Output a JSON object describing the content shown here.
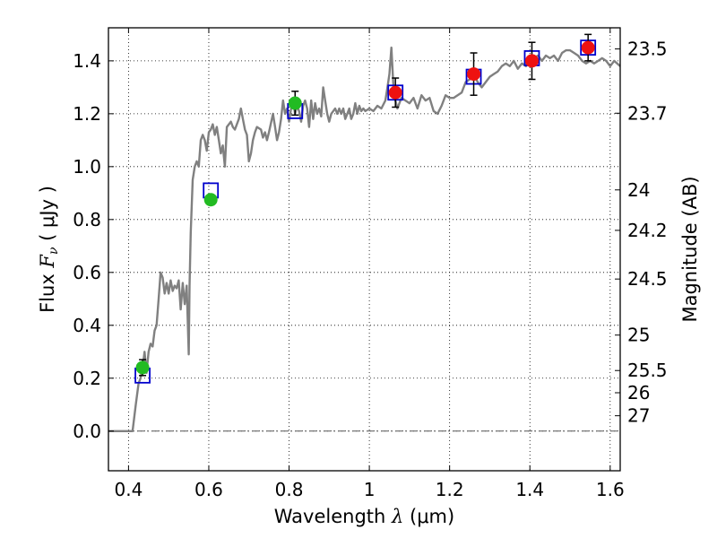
{
  "chart_data": {
    "type": "scatter",
    "title": "",
    "xlabel": "Wavelength λ (μm)",
    "xlabel_parts": {
      "prefix": "Wavelength  ",
      "var": "λ",
      "unit": " (μm)"
    },
    "ylabel": "Flux F_ν (μJy)",
    "ylabel_parts": {
      "prefix": "Flux  ",
      "var": "F",
      "sub": "ν",
      "unit": "  ( μJy )"
    },
    "y2label": "Magnitude (AB)",
    "xlim": [
      0.35,
      1.625
    ],
    "ylim": [
      -0.15,
      1.525
    ],
    "grid": true,
    "grid_style": "dotted",
    "x_ticks": [
      {
        "value": 0.4,
        "label": "0.4"
      },
      {
        "value": 0.6,
        "label": "0.6"
      },
      {
        "value": 0.8,
        "label": "0.8"
      },
      {
        "value": 1.0,
        "label": "1"
      },
      {
        "value": 1.2,
        "label": "1.2"
      },
      {
        "value": 1.4,
        "label": "1.4"
      },
      {
        "value": 1.6,
        "label": "1.6"
      }
    ],
    "y_ticks": [
      {
        "value": 0.0,
        "label": "0.0"
      },
      {
        "value": 0.2,
        "label": "0.2"
      },
      {
        "value": 0.4,
        "label": "0.4"
      },
      {
        "value": 0.6,
        "label": "0.6"
      },
      {
        "value": 0.8,
        "label": "0.8"
      },
      {
        "value": 1.0,
        "label": "1.0"
      },
      {
        "value": 1.2,
        "label": "1.2"
      },
      {
        "value": 1.4,
        "label": "1.4"
      }
    ],
    "magnitude_ticks": [
      {
        "label": "23.5",
        "flux": 1.445
      },
      {
        "label": "23.7",
        "flux": 1.202
      },
      {
        "label": "24",
        "flux": 0.912
      },
      {
        "label": "24.2",
        "flux": 0.759
      },
      {
        "label": "24.5",
        "flux": 0.575
      },
      {
        "label": "25",
        "flux": 0.363
      },
      {
        "label": "25.5",
        "flux": 0.229
      },
      {
        "label": "26",
        "flux": 0.145
      },
      {
        "label": "27",
        "flux": 0.058
      }
    ],
    "zero_line": {
      "y": 0.0,
      "style": "dash-dot",
      "color": "#555555"
    },
    "series": [
      {
        "kind": "model-spectrum",
        "color": "#808080",
        "points": [
          [
            0.35,
            0.0
          ],
          [
            0.41,
            0.0
          ],
          [
            0.418,
            0.1
          ],
          [
            0.425,
            0.18
          ],
          [
            0.43,
            0.2
          ],
          [
            0.435,
            0.24
          ],
          [
            0.44,
            0.3
          ],
          [
            0.445,
            0.22
          ],
          [
            0.45,
            0.3
          ],
          [
            0.455,
            0.33
          ],
          [
            0.46,
            0.32
          ],
          [
            0.465,
            0.38
          ],
          [
            0.47,
            0.4
          ],
          [
            0.475,
            0.5
          ],
          [
            0.48,
            0.6
          ],
          [
            0.485,
            0.58
          ],
          [
            0.49,
            0.52
          ],
          [
            0.495,
            0.56
          ],
          [
            0.5,
            0.52
          ],
          [
            0.505,
            0.57
          ],
          [
            0.51,
            0.53
          ],
          [
            0.515,
            0.55
          ],
          [
            0.52,
            0.54
          ],
          [
            0.525,
            0.57
          ],
          [
            0.53,
            0.46
          ],
          [
            0.535,
            0.56
          ],
          [
            0.54,
            0.48
          ],
          [
            0.545,
            0.55
          ],
          [
            0.55,
            0.29
          ],
          [
            0.552,
            0.55
          ],
          [
            0.555,
            0.75
          ],
          [
            0.56,
            0.95
          ],
          [
            0.565,
            1.0
          ],
          [
            0.57,
            1.02
          ],
          [
            0.575,
            1.0
          ],
          [
            0.58,
            1.1
          ],
          [
            0.585,
            1.12
          ],
          [
            0.59,
            1.1
          ],
          [
            0.595,
            1.06
          ],
          [
            0.6,
            1.13
          ],
          [
            0.605,
            1.14
          ],
          [
            0.61,
            1.16
          ],
          [
            0.615,
            1.12
          ],
          [
            0.62,
            1.15
          ],
          [
            0.625,
            1.1
          ],
          [
            0.63,
            1.05
          ],
          [
            0.635,
            1.08
          ],
          [
            0.64,
            1.0
          ],
          [
            0.645,
            1.15
          ],
          [
            0.65,
            1.16
          ],
          [
            0.655,
            1.17
          ],
          [
            0.66,
            1.15
          ],
          [
            0.665,
            1.14
          ],
          [
            0.67,
            1.16
          ],
          [
            0.675,
            1.18
          ],
          [
            0.68,
            1.22
          ],
          [
            0.685,
            1.18
          ],
          [
            0.69,
            1.14
          ],
          [
            0.695,
            1.12
          ],
          [
            0.7,
            1.02
          ],
          [
            0.705,
            1.05
          ],
          [
            0.71,
            1.1
          ],
          [
            0.715,
            1.13
          ],
          [
            0.72,
            1.15
          ],
          [
            0.73,
            1.14
          ],
          [
            0.735,
            1.11
          ],
          [
            0.74,
            1.13
          ],
          [
            0.745,
            1.1
          ],
          [
            0.75,
            1.13
          ],
          [
            0.76,
            1.2
          ],
          [
            0.765,
            1.15
          ],
          [
            0.77,
            1.1
          ],
          [
            0.775,
            1.13
          ],
          [
            0.78,
            1.18
          ],
          [
            0.785,
            1.25
          ],
          [
            0.79,
            1.2
          ],
          [
            0.795,
            1.22
          ],
          [
            0.8,
            1.17
          ],
          [
            0.805,
            1.22
          ],
          [
            0.81,
            1.25
          ],
          [
            0.815,
            1.2
          ],
          [
            0.82,
            1.23
          ],
          [
            0.825,
            1.21
          ],
          [
            0.83,
            1.17
          ],
          [
            0.835,
            1.23
          ],
          [
            0.84,
            1.25
          ],
          [
            0.845,
            1.22
          ],
          [
            0.85,
            1.15
          ],
          [
            0.855,
            1.25
          ],
          [
            0.86,
            1.18
          ],
          [
            0.865,
            1.24
          ],
          [
            0.87,
            1.2
          ],
          [
            0.875,
            1.22
          ],
          [
            0.88,
            1.19
          ],
          [
            0.885,
            1.3
          ],
          [
            0.89,
            1.25
          ],
          [
            0.895,
            1.2
          ],
          [
            0.9,
            1.17
          ],
          [
            0.905,
            1.2
          ],
          [
            0.91,
            1.21
          ],
          [
            0.915,
            1.22
          ],
          [
            0.92,
            1.2
          ],
          [
            0.925,
            1.22
          ],
          [
            0.93,
            1.2
          ],
          [
            0.935,
            1.22
          ],
          [
            0.94,
            1.18
          ],
          [
            0.945,
            1.2
          ],
          [
            0.95,
            1.22
          ],
          [
            0.955,
            1.18
          ],
          [
            0.96,
            1.2
          ],
          [
            0.965,
            1.24
          ],
          [
            0.97,
            1.2
          ],
          [
            0.975,
            1.23
          ],
          [
            0.98,
            1.21
          ],
          [
            0.985,
            1.22
          ],
          [
            0.99,
            1.21
          ],
          [
            1.0,
            1.22
          ],
          [
            1.01,
            1.21
          ],
          [
            1.02,
            1.23
          ],
          [
            1.03,
            1.22
          ],
          [
            1.04,
            1.25
          ],
          [
            1.045,
            1.3
          ],
          [
            1.05,
            1.35
          ],
          [
            1.055,
            1.45
          ],
          [
            1.06,
            1.3
          ],
          [
            1.065,
            1.25
          ],
          [
            1.07,
            1.22
          ],
          [
            1.08,
            1.26
          ],
          [
            1.09,
            1.25
          ],
          [
            1.1,
            1.24
          ],
          [
            1.11,
            1.26
          ],
          [
            1.12,
            1.22
          ],
          [
            1.13,
            1.27
          ],
          [
            1.14,
            1.25
          ],
          [
            1.15,
            1.26
          ],
          [
            1.16,
            1.21
          ],
          [
            1.17,
            1.2
          ],
          [
            1.18,
            1.23
          ],
          [
            1.19,
            1.27
          ],
          [
            1.2,
            1.26
          ],
          [
            1.21,
            1.26
          ],
          [
            1.22,
            1.27
          ],
          [
            1.23,
            1.28
          ],
          [
            1.24,
            1.32
          ],
          [
            1.25,
            1.33
          ],
          [
            1.26,
            1.35
          ],
          [
            1.27,
            1.32
          ],
          [
            1.28,
            1.3
          ],
          [
            1.29,
            1.32
          ],
          [
            1.3,
            1.34
          ],
          [
            1.31,
            1.35
          ],
          [
            1.32,
            1.36
          ],
          [
            1.33,
            1.38
          ],
          [
            1.34,
            1.39
          ],
          [
            1.35,
            1.38
          ],
          [
            1.36,
            1.4
          ],
          [
            1.37,
            1.37
          ],
          [
            1.38,
            1.39
          ],
          [
            1.39,
            1.38
          ],
          [
            1.4,
            1.42
          ],
          [
            1.41,
            1.41
          ],
          [
            1.42,
            1.42
          ],
          [
            1.43,
            1.4
          ],
          [
            1.44,
            1.42
          ],
          [
            1.45,
            1.41
          ],
          [
            1.46,
            1.42
          ],
          [
            1.47,
            1.4
          ],
          [
            1.48,
            1.43
          ],
          [
            1.49,
            1.44
          ],
          [
            1.5,
            1.44
          ],
          [
            1.51,
            1.43
          ],
          [
            1.52,
            1.42
          ],
          [
            1.53,
            1.4
          ],
          [
            1.54,
            1.39
          ],
          [
            1.55,
            1.4
          ],
          [
            1.56,
            1.39
          ],
          [
            1.57,
            1.4
          ],
          [
            1.58,
            1.41
          ],
          [
            1.59,
            1.4
          ],
          [
            1.6,
            1.38
          ],
          [
            1.61,
            1.4
          ],
          [
            1.625,
            1.38
          ]
        ]
      },
      {
        "kind": "model-photometry",
        "marker": "open-square",
        "color": "#0000cc",
        "points": [
          {
            "x": 0.435,
            "y": 0.21
          },
          {
            "x": 0.605,
            "y": 0.91
          },
          {
            "x": 0.815,
            "y": 1.21
          },
          {
            "x": 1.065,
            "y": 1.28
          },
          {
            "x": 1.26,
            "y": 1.34
          },
          {
            "x": 1.405,
            "y": 1.41
          },
          {
            "x": 1.545,
            "y": 1.45
          }
        ]
      },
      {
        "kind": "observed-optical",
        "marker": "filled-circle",
        "color": "#22bb22",
        "points": [
          {
            "x": 0.435,
            "y": 0.24,
            "err": 0.03
          },
          {
            "x": 0.605,
            "y": 0.875,
            "err": 0.012
          },
          {
            "x": 0.815,
            "y": 1.24,
            "err": 0.045
          }
        ]
      },
      {
        "kind": "observed-infrared",
        "marker": "filled-circle",
        "color": "#ee1111",
        "points": [
          {
            "x": 1.065,
            "y": 1.28,
            "err": 0.055
          },
          {
            "x": 1.26,
            "y": 1.35,
            "err": 0.08
          },
          {
            "x": 1.405,
            "y": 1.4,
            "err": 0.07
          },
          {
            "x": 1.545,
            "y": 1.45,
            "err": 0.05
          }
        ]
      }
    ]
  }
}
